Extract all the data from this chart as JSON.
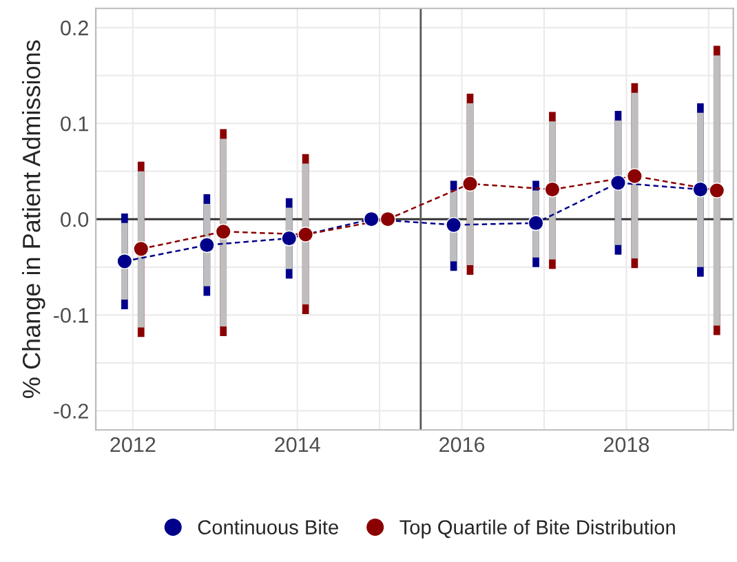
{
  "chart_data": {
    "type": "line",
    "ylabel": "% Change in Patient Admissions",
    "xlim": [
      2011.55,
      2019.3
    ],
    "ylim": [
      -0.22,
      0.22
    ],
    "xticks": [
      {
        "value": 2012,
        "label": "2012"
      },
      {
        "value": 2013,
        "label": null
      },
      {
        "value": 2014,
        "label": "2014"
      },
      {
        "value": 2015,
        "label": null
      },
      {
        "value": 2016,
        "label": "2016"
      },
      {
        "value": 2017,
        "label": null
      },
      {
        "value": 2018,
        "label": "2018"
      },
      {
        "value": 2019,
        "label": null
      }
    ],
    "yticks": [
      {
        "value": -0.2,
        "label": "-0.2"
      },
      {
        "value": -0.15,
        "label": null
      },
      {
        "value": -0.1,
        "label": "-0.1"
      },
      {
        "value": -0.05,
        "label": null
      },
      {
        "value": 0,
        "label": "0.0"
      },
      {
        "value": 0.05,
        "label": null
      },
      {
        "value": 0.1,
        "label": "0.1"
      },
      {
        "value": 0.15,
        "label": null
      },
      {
        "value": 0.2,
        "label": "0.2"
      }
    ],
    "grid": true,
    "legend": "bottom",
    "marker": "circle",
    "line_style": "dashed",
    "ref_lines": [
      {
        "axis": "y",
        "value": 0,
        "color": "#333333"
      },
      {
        "axis": "x",
        "value": 2015.5,
        "color": "#555555"
      }
    ],
    "series": [
      {
        "name": "Continuous Bite",
        "color": "#00008b",
        "x": [
          2011.9,
          2012.9,
          2013.9,
          2014.9,
          2015.9,
          2016.9,
          2017.9,
          2018.9
        ],
        "values": [
          -0.044,
          -0.027,
          -0.02,
          0,
          -0.006,
          -0.004,
          0.038,
          0.031
        ],
        "errors": [
          [
            -0.094,
            0.006
          ],
          [
            -0.08,
            0.026
          ],
          [
            -0.062,
            0.022
          ],
          null,
          [
            -0.054,
            0.04
          ],
          [
            -0.05,
            0.04
          ],
          [
            -0.037,
            0.113
          ],
          [
            -0.06,
            0.121
          ]
        ]
      },
      {
        "name": "Top Quartile of Bite Distribution",
        "color": "#8b0000",
        "x": [
          2012.1,
          2013.1,
          2014.1,
          2015.1,
          2016.1,
          2017.1,
          2018.1,
          2019.1
        ],
        "values": [
          -0.031,
          -0.013,
          -0.016,
          0,
          0.037,
          0.031,
          0.045,
          0.03
        ],
        "errors": [
          [
            -0.123,
            0.06
          ],
          [
            -0.122,
            0.094
          ],
          [
            -0.099,
            0.068
          ],
          null,
          [
            -0.058,
            0.131
          ],
          [
            -0.052,
            0.112
          ],
          [
            -0.051,
            0.142
          ],
          [
            -0.121,
            0.181
          ]
        ]
      }
    ]
  }
}
